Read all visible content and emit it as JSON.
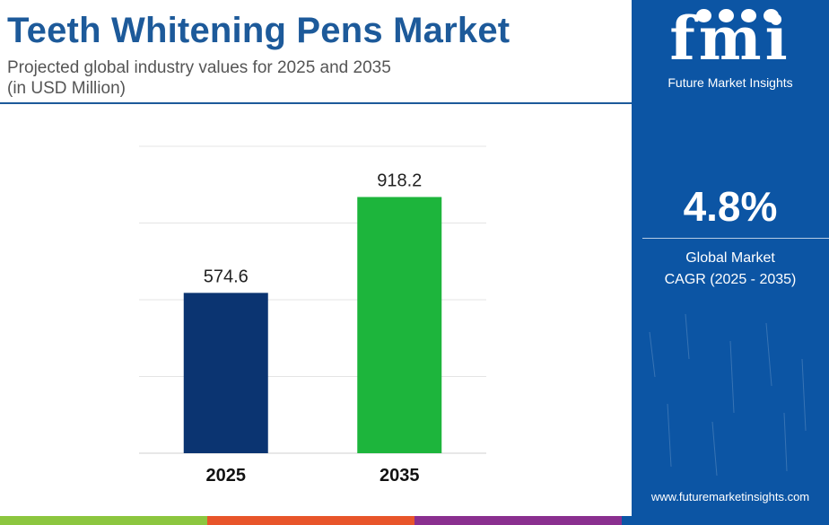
{
  "header": {
    "title": "Teeth Whitening Pens Market",
    "subtitle_line1": "Projected global industry values for 2025 and 2035",
    "subtitle_line2": "(in USD Million)"
  },
  "chart_data": {
    "type": "bar",
    "title": "Teeth Whitening Pens Market",
    "categories": [
      "2025",
      "2035"
    ],
    "values": [
      574.6,
      918.2
    ],
    "value_labels": [
      "574.6",
      "918.2"
    ],
    "bar_colors": [
      "#0b3471",
      "#1db53c"
    ],
    "ylim": [
      0,
      1100
    ],
    "grid": true,
    "xlabel": "",
    "ylabel": ""
  },
  "side_panel": {
    "logo_text": "fmi",
    "logo_caption": "Future Market Insights",
    "cagr_value": "4.8%",
    "cagr_label_line1": "Global Market",
    "cagr_label_line2": "CAGR (2025 - 2035)",
    "url": "www.futuremarketinsights.com",
    "background_color": "#0c55a4"
  },
  "bottom_strip_colors": [
    "#8cc63f",
    "#e8552a",
    "#8a2f8f",
    "#0c55a4"
  ]
}
